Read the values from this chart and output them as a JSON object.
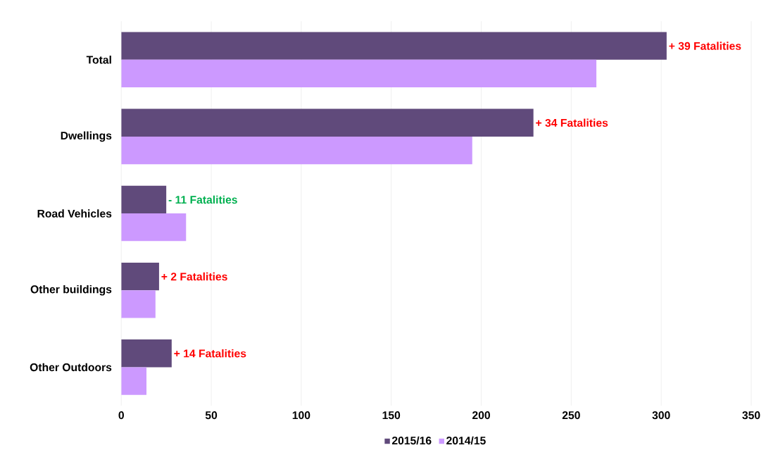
{
  "chart_data": {
    "type": "bar",
    "orientation": "horizontal",
    "categories": [
      "Total",
      "Dwellings",
      "Road Vehicles",
      "Other buildings",
      "Other Outdoors"
    ],
    "series": [
      {
        "name": "2015/16",
        "color": "#604a7b",
        "values": [
          303,
          229,
          25,
          21,
          28
        ]
      },
      {
        "name": "2014/15",
        "color": "#cc99ff",
        "values": [
          264,
          195,
          36,
          19,
          14
        ]
      }
    ],
    "xlim": [
      0,
      350
    ],
    "xticks": [
      0,
      50,
      100,
      150,
      200,
      250,
      300,
      350
    ],
    "grid": "x",
    "legend": "bottom",
    "annotations": [
      {
        "text": "+ 39 Fatalities",
        "x": 303,
        "y": "Total"
      },
      {
        "text": "+ 34 Fatalities",
        "x": 229,
        "y": "Dwellings"
      },
      {
        "text": "- 11 Fatalities",
        "x": 25,
        "y": "Road Vehicles"
      },
      {
        "text": "+ 2 Fatalities",
        "x": 21,
        "y": "Other buildings"
      },
      {
        "text": "+ 14 Fatalities",
        "x": 28,
        "y": "Other Outdoors"
      }
    ]
  }
}
